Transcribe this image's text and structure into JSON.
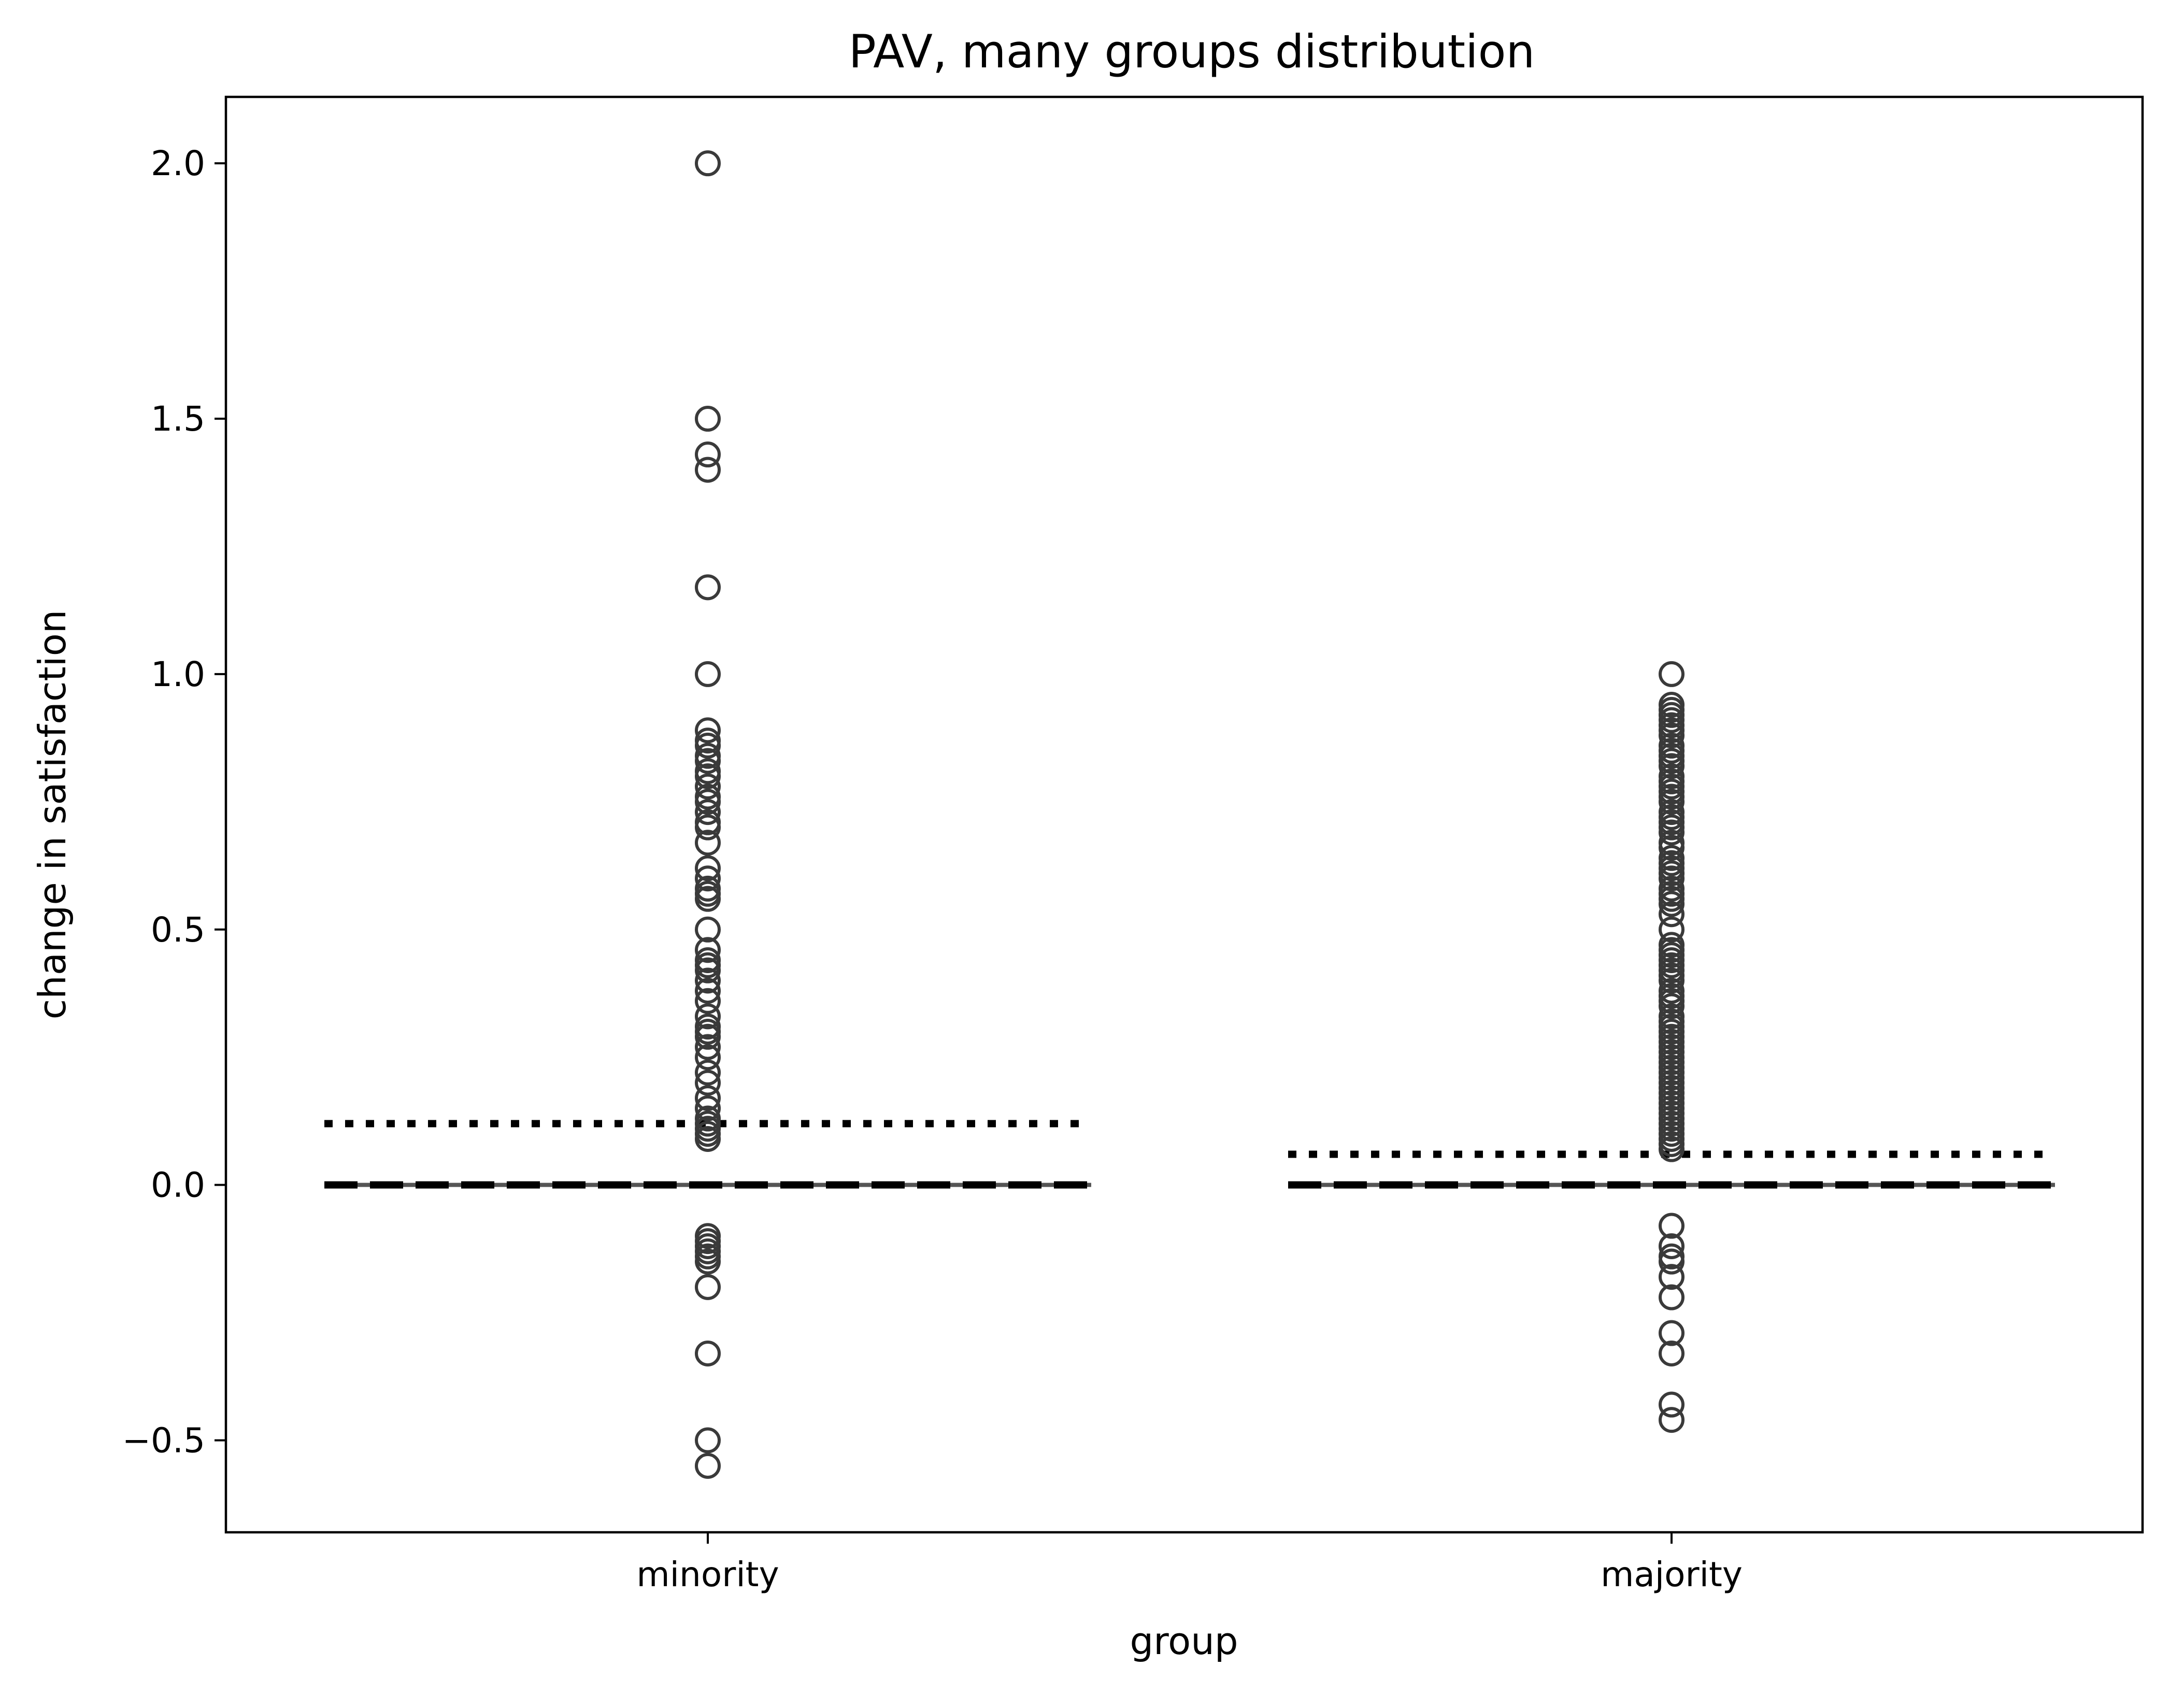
{
  "chart_data": {
    "type": "box",
    "title": "PAV, many groups distribution",
    "xlabel": "group",
    "ylabel": "change in satisfaction",
    "categories": [
      "minority",
      "majority"
    ],
    "ylim": [
      -0.68,
      2.13
    ],
    "yticks": [
      -0.5,
      0.0,
      0.5,
      1.0,
      1.5,
      2.0
    ],
    "ytick_labels": [
      "−0.5",
      "0.0",
      "0.5",
      "1.0",
      "1.5",
      "2.0"
    ],
    "grid": false,
    "legend": "none",
    "box": [
      {
        "name": "minority",
        "q1": 0.0,
        "median": 0.0,
        "q3": 0.0,
        "whisker_low": 0.0,
        "whisker_high": 0.0
      },
      {
        "name": "majority",
        "q1": 0.0,
        "median": 0.0,
        "q3": 0.0,
        "whisker_low": 0.0,
        "whisker_high": 0.0
      }
    ],
    "reference_lines": [
      {
        "category": "minority",
        "style": "dotted",
        "value": 0.12
      },
      {
        "category": "minority",
        "style": "dashed",
        "value": 0.0
      },
      {
        "category": "majority",
        "style": "dotted",
        "value": 0.06
      },
      {
        "category": "majority",
        "style": "dashed",
        "value": 0.0
      }
    ],
    "outliers": [
      {
        "category": "minority",
        "values": [
          2.0,
          1.5,
          1.43,
          1.4,
          1.17,
          1.0,
          0.89,
          0.87,
          0.86,
          0.84,
          0.83,
          0.81,
          0.8,
          0.78,
          0.76,
          0.75,
          0.73,
          0.71,
          0.7,
          0.67,
          0.62,
          0.6,
          0.58,
          0.57,
          0.56,
          0.5,
          0.46,
          0.44,
          0.43,
          0.42,
          0.4,
          0.38,
          0.36,
          0.33,
          0.31,
          0.3,
          0.29,
          0.27,
          0.25,
          0.22,
          0.2,
          0.17,
          0.15,
          0.13,
          0.12,
          0.11,
          0.1,
          0.09,
          -0.1,
          -0.11,
          -0.12,
          -0.13,
          -0.14,
          -0.15,
          -0.2,
          -0.33,
          -0.5,
          -0.55
        ]
      },
      {
        "category": "majority",
        "values": [
          1.0,
          0.94,
          0.93,
          0.92,
          0.91,
          0.9,
          0.89,
          0.88,
          0.86,
          0.85,
          0.84,
          0.83,
          0.82,
          0.8,
          0.79,
          0.78,
          0.77,
          0.76,
          0.75,
          0.73,
          0.72,
          0.71,
          0.7,
          0.69,
          0.67,
          0.66,
          0.64,
          0.63,
          0.62,
          0.61,
          0.6,
          0.58,
          0.57,
          0.56,
          0.55,
          0.53,
          0.5,
          0.47,
          0.46,
          0.45,
          0.44,
          0.43,
          0.42,
          0.41,
          0.4,
          0.38,
          0.37,
          0.36,
          0.35,
          0.33,
          0.32,
          0.31,
          0.3,
          0.29,
          0.28,
          0.27,
          0.26,
          0.25,
          0.24,
          0.23,
          0.22,
          0.21,
          0.2,
          0.19,
          0.18,
          0.17,
          0.16,
          0.15,
          0.14,
          0.13,
          0.12,
          0.11,
          0.1,
          0.09,
          0.08,
          0.07,
          -0.08,
          -0.12,
          -0.14,
          -0.15,
          -0.18,
          -0.22,
          -0.29,
          -0.33,
          -0.43,
          -0.46
        ]
      }
    ]
  }
}
